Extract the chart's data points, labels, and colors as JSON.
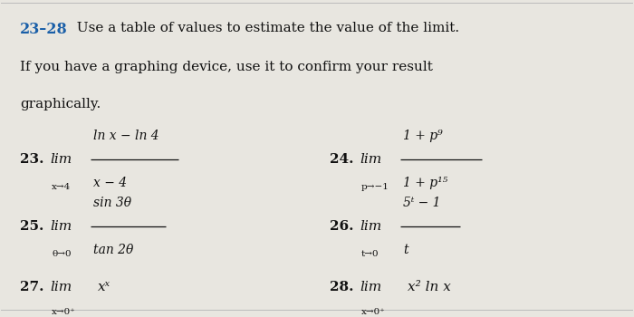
{
  "background_color": "#e8e6e0",
  "title_bold": "23–28",
  "title_text": "  Use a table of values to estimate the value of the limit.",
  "subtitle": "If you have a graphing device, use it to confirm your result",
  "subtitle2": "graphically.",
  "heading_color": "#1a5fa8",
  "text_color": "#111111",
  "p23_num": "23.",
  "p23_lim": "lim",
  "p23_sub": "x→4",
  "p23_numer": "ln x − ln 4",
  "p23_denom": "x − 4",
  "p24_num": "24.",
  "p24_lim": "lim",
  "p24_sub": "p→−1",
  "p24_numer": "1 + p⁹",
  "p24_denom": "1 + p¹⁵",
  "p25_num": "25.",
  "p25_lim": "lim",
  "p25_sub": "θ→0",
  "p25_numer": "sin 3θ",
  "p25_denom": "tan 2θ",
  "p26_num": "26.",
  "p26_lim": "lim",
  "p26_sub": "t→0",
  "p26_numer": "5ᵗ − 1",
  "p26_denom": "t",
  "p27_num": "27.",
  "p27_lim": "lim",
  "p27_sub": "x→0⁺",
  "p27_expr": "xˣ",
  "p28_num": "28.",
  "p28_lim": "lim",
  "p28_sub": "x→0⁺",
  "p28_expr": "x² ln x"
}
